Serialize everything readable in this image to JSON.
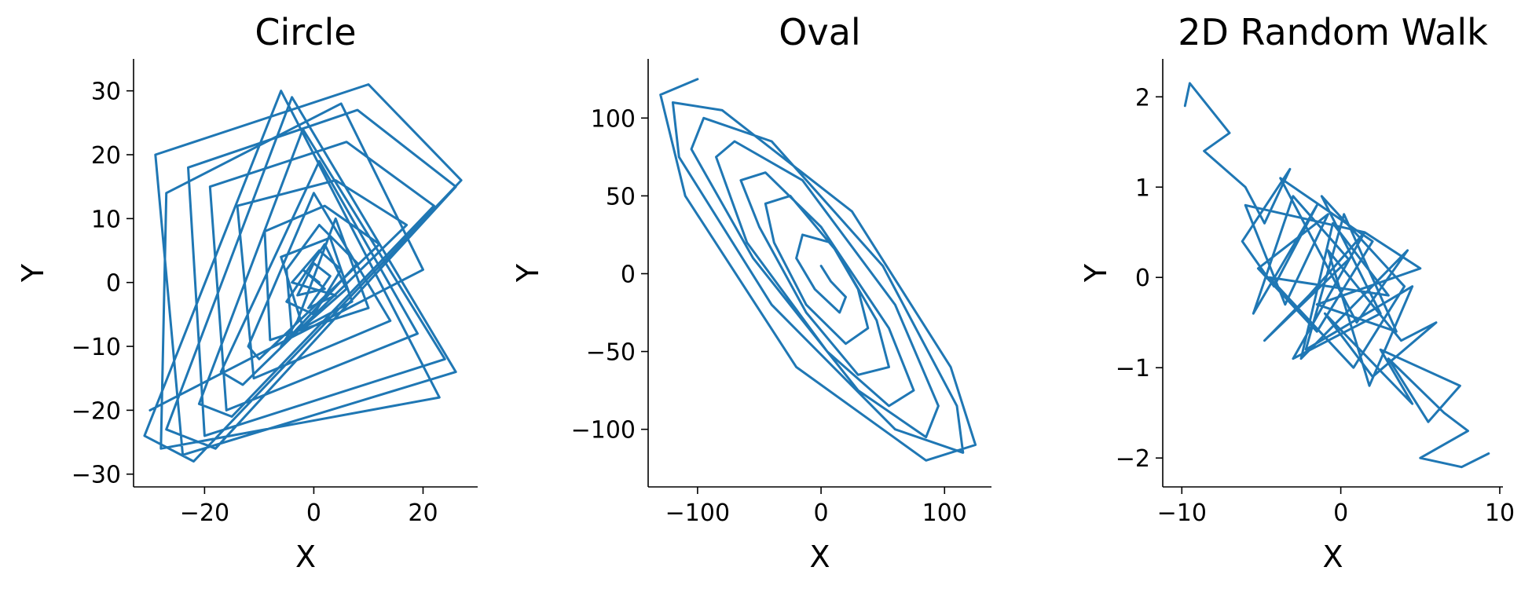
{
  "chart_data": [
    {
      "type": "line",
      "title": "Circle",
      "xlabel": "X",
      "ylabel": "Y",
      "xlim": [
        -33,
        30
      ],
      "ylim": [
        -32,
        35
      ],
      "xticks": [
        -20,
        0,
        20
      ],
      "yticks": [
        -30,
        -20,
        -10,
        0,
        10,
        20,
        30
      ],
      "xtick_labels": [
        "−20",
        "0",
        "20"
      ],
      "ytick_labels": [
        "−30",
        "−20",
        "−10",
        "0",
        "10",
        "20",
        "30"
      ],
      "grid": false,
      "color": "#1f77b4",
      "series": [
        {
          "x": [
            1,
            -2,
            2,
            -3,
            0,
            3,
            -1,
            4,
            -4,
            1,
            5,
            0,
            -5,
            2,
            6,
            -2,
            -6,
            3,
            7,
            -4,
            -5,
            1,
            8,
            -6,
            -3,
            4,
            10,
            -8,
            -9,
            2,
            12,
            -10,
            -12,
            0,
            14,
            -11,
            -14,
            4,
            17,
            -13,
            -17,
            1,
            19,
            -16,
            -19,
            6,
            22,
            -15,
            -21,
            -2,
            24,
            -20,
            -23,
            8,
            26,
            -18,
            -27,
            -4,
            26,
            -24,
            -29,
            10,
            27,
            -22,
            -31,
            -6,
            23,
            -28,
            -27,
            5,
            20,
            -30
          ],
          "y": [
            0,
            2,
            -1,
            -2,
            3,
            1,
            -4,
            -2,
            0,
            5,
            2,
            -5,
            -3,
            6,
            -1,
            -7,
            4,
            7,
            -3,
            -8,
            2,
            9,
            3,
            -10,
            -6,
            10,
            -4,
            -9,
            8,
            12,
            6,
            -12,
            -10,
            14,
            -6,
            -15,
            12,
            16,
            9,
            -16,
            -14,
            19,
            -8,
            -20,
            15,
            22,
            12,
            -21,
            -19,
            24,
            -12,
            -24,
            18,
            27,
            15,
            -26,
            -23,
            29,
            -14,
            -27,
            20,
            31,
            16,
            -28,
            -24,
            30,
            -18,
            -26,
            14,
            28,
            2,
            -20
          ]
        }
      ]
    },
    {
      "type": "line",
      "title": "Oval",
      "xlabel": "X",
      "ylabel": "Y",
      "xlim": [
        -140,
        138
      ],
      "ylim": [
        -137,
        138
      ],
      "xticks": [
        -100,
        0,
        100
      ],
      "yticks": [
        -100,
        -50,
        0,
        50,
        100
      ],
      "xtick_labels": [
        "−100",
        "0",
        "100"
      ],
      "ytick_labels": [
        "−100",
        "−50",
        "0",
        "50",
        "100"
      ],
      "grid": false,
      "color": "#1f77b4",
      "series": [
        {
          "x": [
            0,
            8,
            20,
            15,
            -5,
            -20,
            -15,
            8,
            30,
            38,
            20,
            -12,
            -38,
            -45,
            -25,
            12,
            45,
            55,
            30,
            -12,
            -50,
            -65,
            -45,
            0,
            55,
            75,
            55,
            5,
            -60,
            -85,
            -70,
            -15,
            60,
            95,
            85,
            30,
            -55,
            -105,
            -95,
            -40,
            50,
            110,
            115,
            60,
            -40,
            -115,
            -120,
            -80,
            25,
            105,
            125,
            85,
            -20,
            -110,
            -130,
            -100
          ],
          "y": [
            5,
            -5,
            -15,
            -25,
            -10,
            10,
            25,
            20,
            -10,
            -35,
            -45,
            -20,
            20,
            45,
            50,
            15,
            -30,
            -60,
            -65,
            -25,
            30,
            60,
            65,
            30,
            -35,
            -75,
            -85,
            -50,
            20,
            75,
            85,
            60,
            -20,
            -85,
            -105,
            -75,
            10,
            80,
            100,
            85,
            5,
            -85,
            -115,
            -100,
            -20,
            75,
            110,
            105,
            40,
            -60,
            -110,
            -120,
            -60,
            50,
            115,
            125
          ]
        }
      ]
    },
    {
      "type": "line",
      "title": "2D Random Walk",
      "xlabel": "X",
      "ylabel": "Y",
      "xlim": [
        -11.2,
        10.2
      ],
      "ylim": [
        -2.32,
        2.42
      ],
      "xticks": [
        -10,
        0,
        10
      ],
      "yticks": [
        -2,
        -1,
        0,
        1,
        2
      ],
      "xtick_labels": [
        "−10",
        "0",
        "10"
      ],
      "ytick_labels": [
        "−2",
        "−1",
        "0",
        "1",
        "2"
      ],
      "grid": false,
      "color": "#1f77b4",
      "series": [
        {
          "x": [
            -9.8,
            -9.5,
            -7.0,
            -8.6,
            -6.0,
            -4.8,
            -3.2,
            -6.2,
            -4.2,
            -1.5,
            -5.5,
            -3.0,
            0.5,
            -4.8,
            -2.0,
            1.5,
            -6.0,
            -3.5,
            -0.8,
            -5.2,
            -1.5,
            2.0,
            -3.8,
            1.0,
            4.2,
            -2.5,
            -0.5,
            3.0,
            -4.5,
            0.8,
            4.0,
            -1.2,
            2.5,
            -3.0,
            1.5,
            5.0,
            -1.5,
            3.5,
            0.2,
            -2.2,
            4.5,
            1.8,
            -0.8,
            3.8,
            6.0,
            2.0,
            -1.0,
            4.5,
            2.5,
            7.5,
            5.5,
            3.0,
            6.5,
            8.0,
            5.0,
            7.6,
            9.3
          ],
          "y": [
            1.9,
            2.15,
            1.6,
            1.4,
            1.0,
            0.6,
            1.2,
            0.4,
            -0.1,
            0.8,
            -0.4,
            0.9,
            0.2,
            -0.7,
            -0.2,
            0.5,
            0.8,
            -0.3,
            0.7,
            0.1,
            -0.6,
            0.4,
            1.1,
            -0.5,
            0.3,
            -0.9,
            0.6,
            -0.2,
            0.0,
            -1.0,
            -0.1,
            0.9,
            -0.4,
            -0.9,
            0.5,
            0.1,
            -0.3,
            -0.6,
            0.7,
            -0.8,
            -0.1,
            -1.2,
            0.3,
            -0.7,
            -0.5,
            -1.1,
            -0.4,
            -1.4,
            -0.8,
            -1.2,
            -1.6,
            -0.9,
            -1.5,
            -1.7,
            -2.0,
            -2.1,
            -1.95
          ]
        }
      ]
    }
  ]
}
